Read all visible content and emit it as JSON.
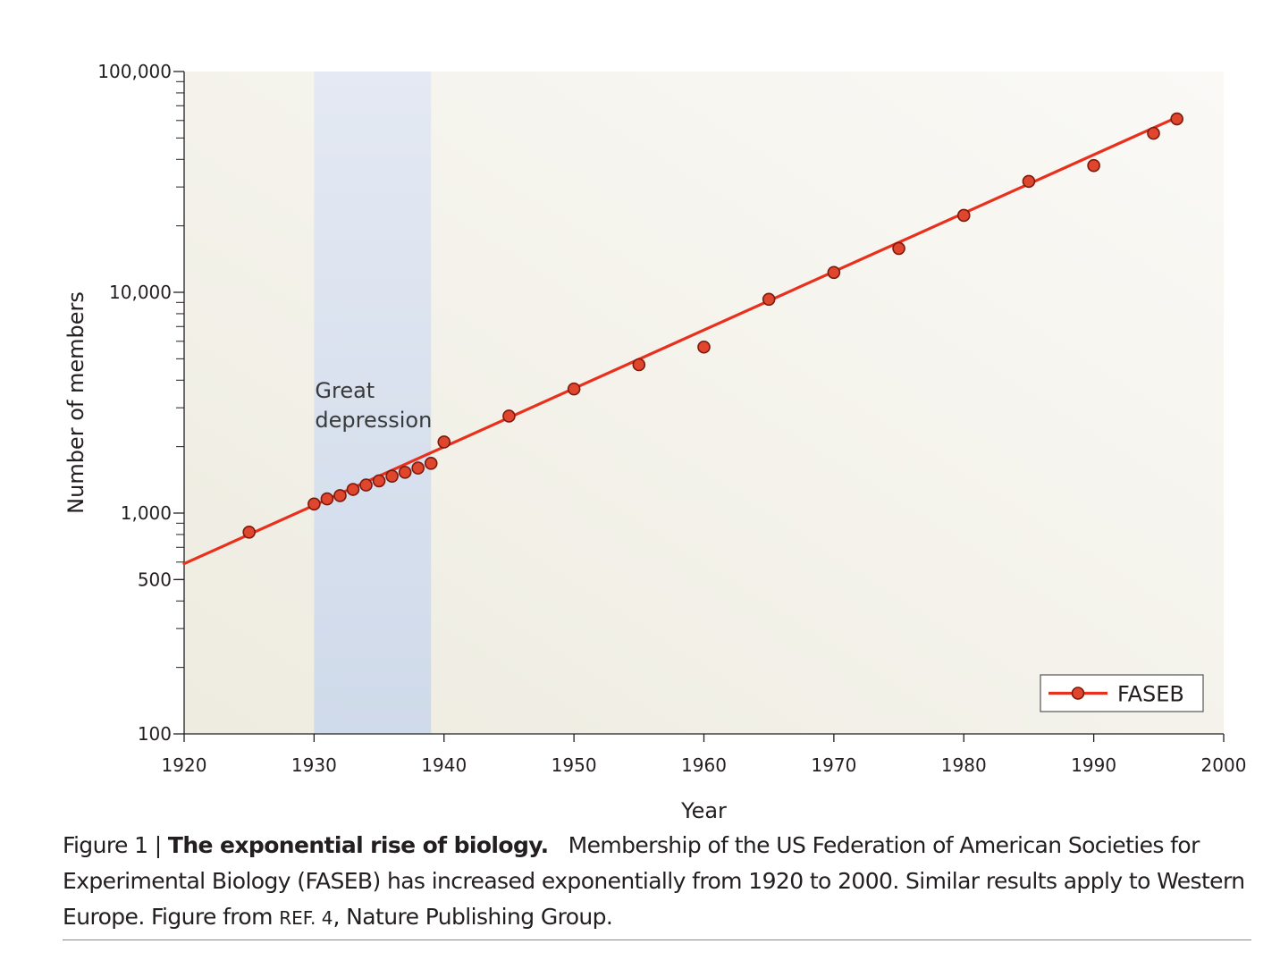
{
  "chart_data": {
    "type": "scatter",
    "xlabel": "Year",
    "ylabel": "Number of members",
    "xlim": [
      1920,
      2000
    ],
    "ylim": [
      100,
      100000
    ],
    "yscale": "log",
    "x_ticks": [
      "1920",
      "1930",
      "1940",
      "1950",
      "1960",
      "1970",
      "1980",
      "1990",
      "2000"
    ],
    "y_ticks": [
      {
        "value": 100,
        "label": "100"
      },
      {
        "value": 500,
        "label": "500"
      },
      {
        "value": 1000,
        "label": "1,000"
      },
      {
        "value": 10000,
        "label": "10,000"
      },
      {
        "value": 100000,
        "label": "100,000"
      }
    ],
    "shaded_region": {
      "x": [
        1930,
        1939
      ],
      "label_lines": [
        "Great",
        "depression"
      ],
      "color": "#d3dcee"
    },
    "series": [
      {
        "name": "FASEB",
        "color": "#e8301c",
        "marker_color": "#e0462e",
        "points": [
          {
            "x": 1925,
            "y": 820
          },
          {
            "x": 1930,
            "y": 1100
          },
          {
            "x": 1931,
            "y": 1160
          },
          {
            "x": 1932,
            "y": 1200
          },
          {
            "x": 1933,
            "y": 1280
          },
          {
            "x": 1934,
            "y": 1340
          },
          {
            "x": 1935,
            "y": 1400
          },
          {
            "x": 1936,
            "y": 1470
          },
          {
            "x": 1937,
            "y": 1530
          },
          {
            "x": 1938,
            "y": 1600
          },
          {
            "x": 1939,
            "y": 1680
          },
          {
            "x": 1940,
            "y": 2100
          },
          {
            "x": 1945,
            "y": 2750
          },
          {
            "x": 1950,
            "y": 3650
          },
          {
            "x": 1955,
            "y": 4700
          },
          {
            "x": 1960,
            "y": 5650
          },
          {
            "x": 1965,
            "y": 9300
          },
          {
            "x": 1970,
            "y": 12300
          },
          {
            "x": 1975,
            "y": 15800
          },
          {
            "x": 1980,
            "y": 22300
          },
          {
            "x": 1985,
            "y": 31800
          },
          {
            "x": 1990,
            "y": 37500
          },
          {
            "x": 1994.6,
            "y": 52500
          },
          {
            "x": 1996.4,
            "y": 61000
          }
        ],
        "fit_line": [
          {
            "x": 1920,
            "y": 590
          },
          {
            "x": 1996.4,
            "y": 62000
          }
        ]
      }
    ],
    "legend": {
      "position": "bottom-right",
      "entries": [
        "FASEB"
      ]
    }
  },
  "caption": {
    "figure_label": "Figure 1 | ",
    "title": "The exponential rise of biology.",
    "text_before_ref": "Membership of the US Federation of American Societies for Experimental Biology (FASEB) has increased exponentially from 1920 to 2000. Similar results apply to Western Europe. Figure from ",
    "ref": "REF. 4",
    "text_after_ref": ", Nature Publishing Group."
  }
}
